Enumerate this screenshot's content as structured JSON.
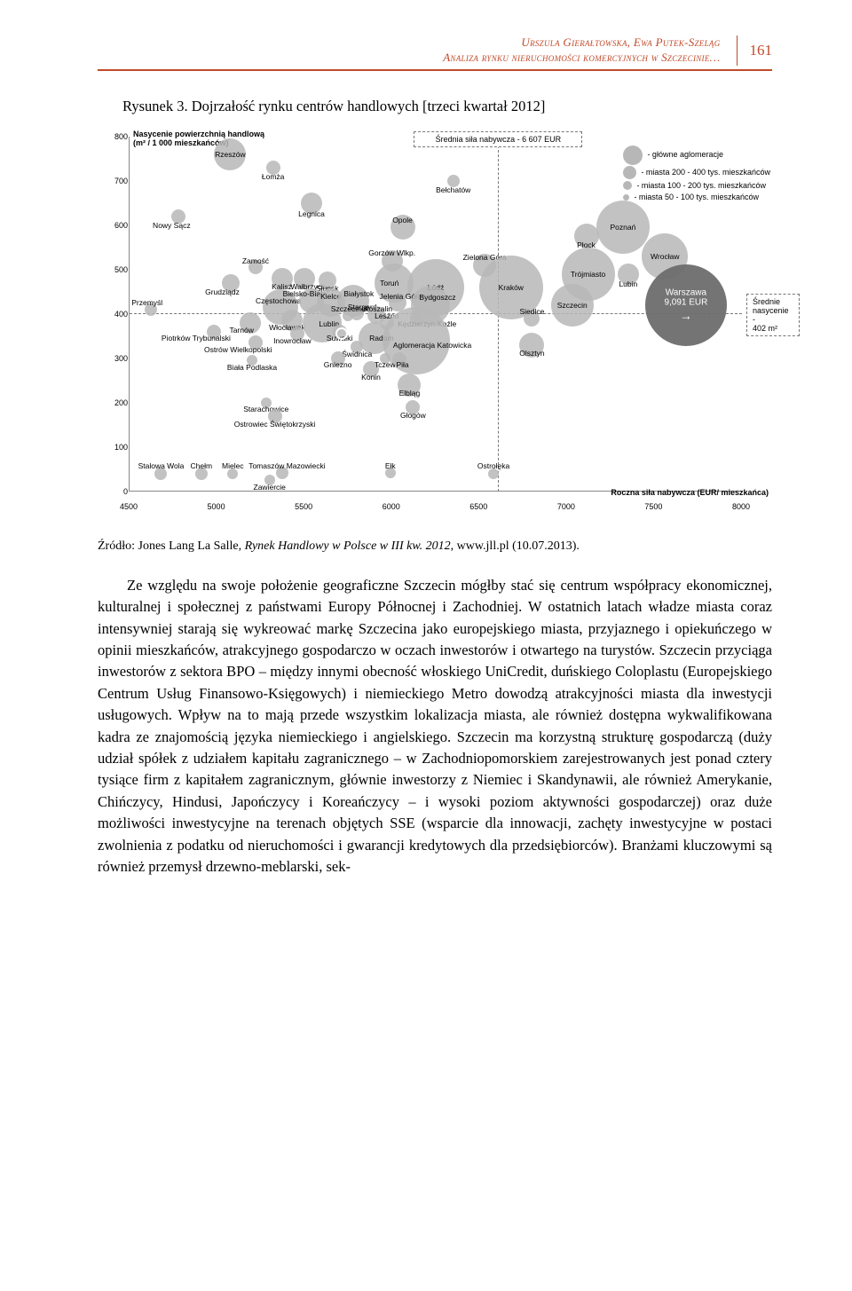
{
  "header": {
    "authors": "Urszula Gierałtowska, Ewa Putek-Szeląg",
    "subtitle": "Analiza rynku nieruchomości komercyjnych w Szczecinie…",
    "page": "161"
  },
  "figure": {
    "caption": "Rysunek 3. Dojrzałość rynku centrów handlowych [trzeci kwartał 2012]",
    "y_axis_title_1": "Nasycenie powierzchnią handlową",
    "y_axis_title_2": "(m² / 1 000 mieszkańców)",
    "x_axis_title": "Roczna siła nabywcza (EUR/ mieszkańca)",
    "xlim": [
      4500,
      8000
    ],
    "ylim": [
      0,
      800
    ],
    "yticks": [
      0,
      100,
      200,
      300,
      400,
      500,
      600,
      700,
      800
    ],
    "xticks": [
      4500,
      5000,
      5500,
      6000,
      6500,
      7000,
      7500,
      8000
    ],
    "avg_power_label": "Średnia siła nabywcza - 6 607 EUR",
    "avg_power_x": 6607,
    "avg_sat_box_1": "Średnie",
    "avg_sat_box_2": "nasycenie -",
    "avg_sat_box_3": "402 m²",
    "avg_sat_y": 402,
    "legend_items": [
      {
        "label": "- główne aglomeracje",
        "r": 22
      },
      {
        "label": "- miasta 200 - 400 tys. mieszkańców",
        "r": 15
      },
      {
        "label": "- miasta 100 - 200 tys. mieszkańców",
        "r": 10
      },
      {
        "label": "- miasta 50 - 100 tys. mieszkańców",
        "r": 7
      }
    ],
    "warsaw_label_1": "Warszawa",
    "warsaw_label_2": "9,091 EUR",
    "colors": {
      "bubble_gray": "#b7b7b7",
      "bubble_dark": "#6d6d6d",
      "axis": "#888888",
      "dash": "#777777",
      "accent": "#c14a2a",
      "bg": "#ffffff"
    },
    "bubbles": [
      {
        "name": "Rzeszów",
        "x": 5075,
        "y": 760,
        "r": 18,
        "lx": 5075,
        "ly": 760,
        "inside": true
      },
      {
        "name": "Łomża",
        "x": 5320,
        "y": 730,
        "r": 8,
        "lx": 5320,
        "ly": 710
      },
      {
        "name": "Nowy Sącz",
        "x": 4780,
        "y": 620,
        "r": 8,
        "lx": 4740,
        "ly": 600
      },
      {
        "name": "Legnica",
        "x": 5540,
        "y": 650,
        "r": 12,
        "lx": 5540,
        "ly": 625
      },
      {
        "name": "Bełchatów",
        "x": 6350,
        "y": 700,
        "r": 7,
        "lx": 6350,
        "ly": 680
      },
      {
        "name": "Opole",
        "x": 6060,
        "y": 595,
        "r": 14,
        "lx": 6060,
        "ly": 612
      },
      {
        "name": "Poznań",
        "x": 7320,
        "y": 595,
        "r": 30,
        "lx": 7320,
        "ly": 595,
        "inside": true
      },
      {
        "name": "Płock",
        "x": 7110,
        "y": 575,
        "r": 14,
        "lx": 7110,
        "ly": 555
      },
      {
        "name": "Wrocław",
        "x": 7560,
        "y": 530,
        "r": 26,
        "lx": 7560,
        "ly": 530,
        "inside": true
      },
      {
        "name": "Lubin",
        "x": 7350,
        "y": 490,
        "r": 12,
        "lx": 7350,
        "ly": 468
      },
      {
        "name": "Trójmiasto",
        "x": 7120,
        "y": 490,
        "r": 30,
        "lx": 7120,
        "ly": 490,
        "inside": true
      },
      {
        "name": "Zielona Góra",
        "x": 6530,
        "y": 510,
        "r": 13,
        "lx": 6530,
        "ly": 528
      },
      {
        "name": "Kraków",
        "x": 6680,
        "y": 460,
        "r": 36,
        "lx": 6680,
        "ly": 460,
        "inside": true
      },
      {
        "name": "Zamość",
        "x": 5220,
        "y": 505,
        "r": 8,
        "lx": 5220,
        "ly": 520
      },
      {
        "name": "Grudziądz",
        "x": 5080,
        "y": 470,
        "r": 10,
        "lx": 5030,
        "ly": 450
      },
      {
        "name": "Kalisz",
        "x": 5370,
        "y": 480,
        "r": 12,
        "lx": 5370,
        "ly": 462
      },
      {
        "name": "Wałbrzych",
        "x": 5500,
        "y": 480,
        "r": 12,
        "lx": 5520,
        "ly": 462
      },
      {
        "name": "Słupsk",
        "x": 5630,
        "y": 475,
        "r": 10,
        "lx": 5630,
        "ly": 457
      },
      {
        "name": "Gorzów Wlkp.",
        "x": 6000,
        "y": 520,
        "r": 12,
        "lx": 6000,
        "ly": 538
      },
      {
        "name": "Toruń",
        "x": 6010,
        "y": 470,
        "r": 22,
        "lx": 5985,
        "ly": 470,
        "inside": true
      },
      {
        "name": "Łódź",
        "x": 6250,
        "y": 460,
        "r": 32,
        "lx": 6250,
        "ly": 460,
        "inside": true
      },
      {
        "name": "Przemyśl",
        "x": 4620,
        "y": 410,
        "r": 7,
        "lx": 4600,
        "ly": 425
      },
      {
        "name": "Tarnów",
        "x": 5190,
        "y": 380,
        "r": 12,
        "lx": 5140,
        "ly": 364
      },
      {
        "name": "Częstochowa",
        "x": 5360,
        "y": 415,
        "r": 20,
        "lx": 5350,
        "ly": 430
      },
      {
        "name": "Bielsko-Biała",
        "x": 5540,
        "y": 430,
        "r": 14,
        "lx": 5500,
        "ly": 446
      },
      {
        "name": "Kielce",
        "x": 5650,
        "y": 425,
        "r": 16,
        "lx": 5650,
        "ly": 440
      },
      {
        "name": "Białystok",
        "x": 5780,
        "y": 430,
        "r": 18,
        "lx": 5810,
        "ly": 446
      },
      {
        "name": "Stargard",
        "x": 5800,
        "y": 402,
        "r": 8,
        "lx": 5830,
        "ly": 415
      },
      {
        "name": "Jelenia Góra",
        "x": 6030,
        "y": 425,
        "r": 10,
        "lx": 6050,
        "ly": 440
      },
      {
        "name": "Bydgoszcz",
        "x": 6220,
        "y": 420,
        "r": 22,
        "lx": 6260,
        "ly": 438
      },
      {
        "name": "Szczecin",
        "x": 7030,
        "y": 420,
        "r": 24,
        "lx": 7030,
        "ly": 420,
        "inside": true
      },
      {
        "name": "Warszawa",
        "x": 7680,
        "y": 420,
        "r": 46,
        "lx": 7680,
        "ly": 420,
        "dark": true,
        "big": true
      },
      {
        "name": "Piotrków Trybunalski",
        "x": 4980,
        "y": 360,
        "r": 8,
        "lx": 4880,
        "ly": 345
      },
      {
        "name": "Włocławek",
        "x": 5430,
        "y": 385,
        "r": 12,
        "lx": 5400,
        "ly": 370
      },
      {
        "name": "Inowrocław",
        "x": 5460,
        "y": 355,
        "r": 8,
        "lx": 5430,
        "ly": 340
      },
      {
        "name": "Lublin",
        "x": 5600,
        "y": 380,
        "r": 22,
        "lx": 5640,
        "ly": 378,
        "inside": true
      },
      {
        "name": "Suwałki",
        "x": 5700,
        "y": 360,
        "r": 8,
        "lx": 5700,
        "ly": 345
      },
      {
        "name": "Szczecinek",
        "x": 5750,
        "y": 395,
        "r": 6,
        "lx": 5760,
        "ly": 412
      },
      {
        "name": "Koszalin",
        "x": 5910,
        "y": 398,
        "r": 10,
        "lx": 5920,
        "ly": 412
      },
      {
        "name": "Leszno",
        "x": 5970,
        "y": 380,
        "r": 8,
        "lx": 5970,
        "ly": 395
      },
      {
        "name": "Kędzierzyn-Koźle",
        "x": 6140,
        "y": 390,
        "r": 7,
        "lx": 6200,
        "ly": 378
      },
      {
        "name": "Siedlce",
        "x": 6800,
        "y": 390,
        "r": 9,
        "lx": 6800,
        "ly": 405
      },
      {
        "name": "Ostrów Wielkopolski",
        "x": 5220,
        "y": 335,
        "r": 8,
        "lx": 5120,
        "ly": 320
      },
      {
        "name": "Radom",
        "x": 5900,
        "y": 345,
        "r": 18,
        "lx": 5940,
        "ly": 345,
        "inside": true
      },
      {
        "name": "Świdnica",
        "x": 5800,
        "y": 325,
        "r": 7,
        "lx": 5800,
        "ly": 310
      },
      {
        "name": "Aglomeracja Katowicka",
        "x": 6140,
        "y": 340,
        "r": 38,
        "lx": 6230,
        "ly": 330
      },
      {
        "name": "Olsztyn",
        "x": 6800,
        "y": 330,
        "r": 14,
        "lx": 6800,
        "ly": 312
      },
      {
        "name": "Biała Podlaska",
        "x": 5200,
        "y": 295,
        "r": 6,
        "lx": 5200,
        "ly": 280
      },
      {
        "name": "Gniezno",
        "x": 5690,
        "y": 300,
        "r": 8,
        "lx": 5690,
        "ly": 285
      },
      {
        "name": "Konin",
        "x": 5880,
        "y": 275,
        "r": 9,
        "lx": 5880,
        "ly": 258
      },
      {
        "name": "Tczew",
        "x": 5960,
        "y": 300,
        "r": 6,
        "lx": 5960,
        "ly": 285
      },
      {
        "name": "Piła",
        "x": 6040,
        "y": 298,
        "r": 8,
        "lx": 6060,
        "ly": 285
      },
      {
        "name": "Elbląg",
        "x": 6100,
        "y": 240,
        "r": 13,
        "lx": 6100,
        "ly": 222
      },
      {
        "name": "Głogów",
        "x": 6120,
        "y": 190,
        "r": 8,
        "lx": 6120,
        "ly": 172
      },
      {
        "name": "Starachowice",
        "x": 5280,
        "y": 200,
        "r": 6,
        "lx": 5280,
        "ly": 185
      },
      {
        "name": "Ostrowiec Świętokrzyski",
        "x": 5330,
        "y": 170,
        "r": 8,
        "lx": 5330,
        "ly": 152
      },
      {
        "name": "Stalowa Wola",
        "x": 4680,
        "y": 40,
        "r": 7,
        "lx": 4680,
        "ly": 58
      },
      {
        "name": "Chełm",
        "x": 4910,
        "y": 40,
        "r": 7,
        "lx": 4910,
        "ly": 58
      },
      {
        "name": "Mielec",
        "x": 5090,
        "y": 40,
        "r": 6,
        "lx": 5090,
        "ly": 58
      },
      {
        "name": "Zawiercie",
        "x": 5300,
        "y": 25,
        "r": 6,
        "lx": 5300,
        "ly": 10
      },
      {
        "name": "Tomaszów Mazowiecki",
        "x": 5370,
        "y": 42,
        "r": 7,
        "lx": 5400,
        "ly": 58
      },
      {
        "name": "Ełk",
        "x": 5990,
        "y": 42,
        "r": 6,
        "lx": 5990,
        "ly": 58
      },
      {
        "name": "Ostrołęka",
        "x": 6580,
        "y": 40,
        "r": 6,
        "lx": 6580,
        "ly": 58
      }
    ]
  },
  "source": {
    "prefix": "Źródło: Jones Lang La Salle, ",
    "italic": "Rynek Handlowy w Polsce w III kw. 2012",
    "suffix": ", www.jll.pl (10.07.2013)."
  },
  "body": {
    "text": "Ze względu na swoje położenie geograficzne Szczecin mógłby stać się centrum współpracy ekonomicznej, kulturalnej i społecznej z państwami Europy Północnej i Zachodniej. W ostatnich latach władze miasta coraz intensywniej starają się wykreować markę Szczecina jako europejskiego miasta, przyjaznego i opiekuńczego w opinii mieszkańców, atrakcyjnego gospodarczo w oczach inwestorów i otwartego na turystów. Szczecin przyciąga inwestorów z sektora BPO – między innymi obecność włoskiego UniCredit, duńskiego Coloplastu (Europejskiego Centrum Usług Finansowo-Księgowych) i niemieckiego Metro dowodzą atrakcyjności miasta dla inwestycji usługowych. Wpływ na to mają przede wszystkim lokalizacja miasta, ale również dostępna wykwalifikowana kadra ze znajomością języka niemieckiego i angielskiego. Szczecin ma korzystną strukturę gospodarczą (duży udział spółek z udziałem kapitału zagranicznego – w Zachodniopomorskiem zarejestrowanych jest ponad cztery tysiące firm z kapitałem zagranicznym, głównie inwestorzy z Niemiec i Skandynawii, ale również Amerykanie, Chińczycy, Hindusi, Japończycy i Koreańczycy – i wysoki poziom aktywności gospodarczej) oraz duże możliwości inwestycyjne na terenach objętych SSE (wsparcie dla innowacji, zachęty inwestycyjne w postaci zwolnienia z podatku od nieruchomości i gwarancji kredytowych dla przedsiębiorców). Branżami kluczowymi są również przemysł drzewno-meblarski, sek-"
  }
}
